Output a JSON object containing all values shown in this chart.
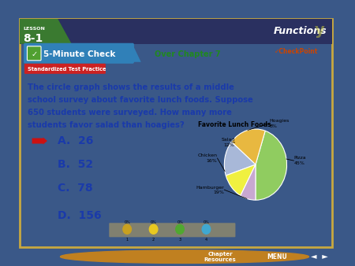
{
  "title": "Favorite Lunch Foods",
  "pie_labels": [
    "Pizza",
    "Hamburger",
    "Chicken",
    "Salad",
    "Hoagies"
  ],
  "pie_sizes": [
    45,
    19,
    16,
    12,
    8
  ],
  "pie_colors": [
    "#90cc60",
    "#e8b840",
    "#a8b8d8",
    "#f0f040",
    "#c8a8d0"
  ],
  "header_bg": "#2a3060",
  "green_accent": "#3a7a30",
  "tab_bg": "#3080b8",
  "tab_green": "#50a030",
  "over_text": "Over Chapter 7",
  "over_color": "#208820",
  "checkpoint_color": "#cc4400",
  "red_label_bg": "#cc2222",
  "question_color": "#1a3aaa",
  "answer_color": "#1a3aaa",
  "outer_bg": "#3a5888",
  "inner_bg": "#ffffff",
  "border_color": "#c8a840",
  "arrow_color": "#cc1111",
  "bottom_bar_bg": "#40a0b0",
  "progress_bg": "#808070",
  "progress_dot_colors": [
    "#c8a020",
    "#e8c820",
    "#50a830",
    "#40a8d0"
  ],
  "question": "The circle graph shows the results of a middle\nschool survey about favorite lunch foods. Suppose\n650 students were surveyed. How many more\nstudents favor salad than hoagies?",
  "answers": [
    "A.  26",
    "B.  52",
    "C.  78",
    "D.  156"
  ],
  "lesson": "8-1"
}
